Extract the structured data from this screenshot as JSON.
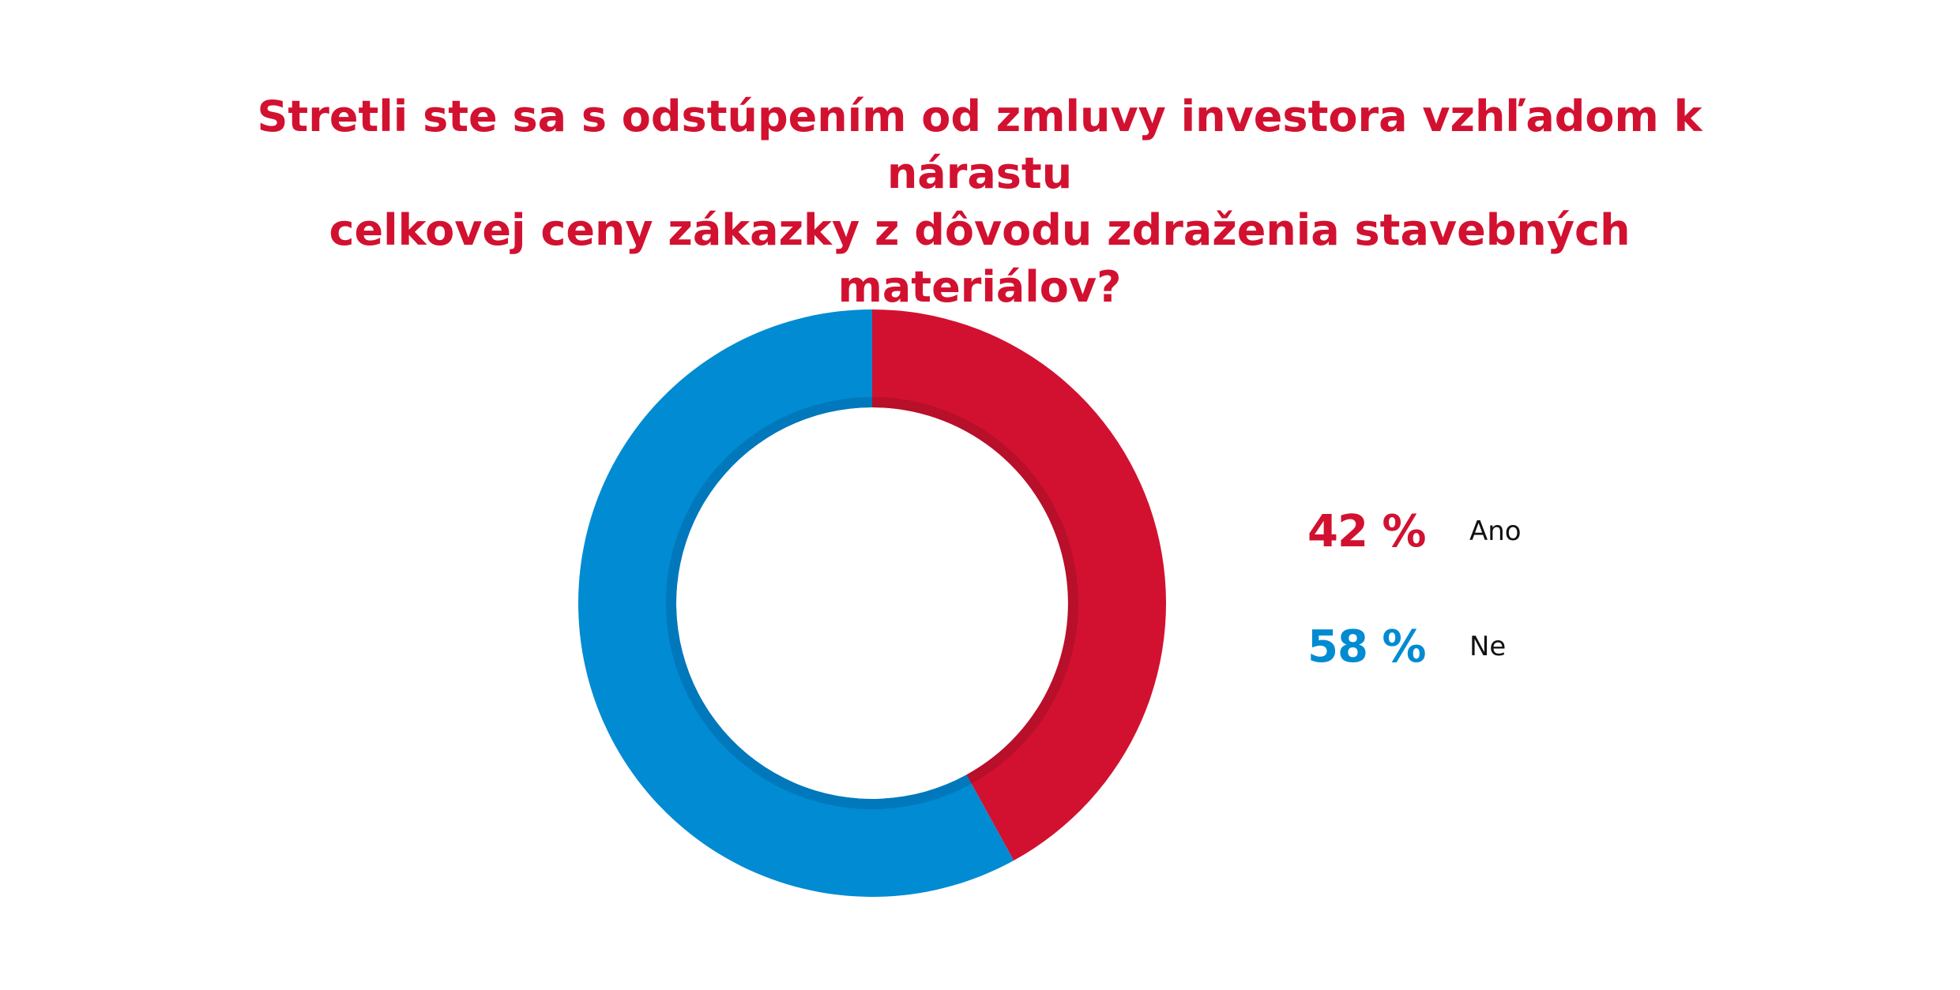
{
  "colors": {
    "title": "#d21130",
    "ano": "#d21130",
    "ne": "#008bd2",
    "ano_inner": "#b80f2a",
    "ne_inner": "#0078bb"
  },
  "chart_data": {
    "type": "pie",
    "title": "Stretli ste sa s odstúpením od zmluvy investora vzhľadom k nárastu celkovej ceny zákazky z dôvodu zdraženia stavebných materiálov?",
    "title_lines": [
      "Stretli ste sa s odstúpením od zmluvy investora vzhľadom k nárastu",
      "celkovej ceny zákazky z dôvodu zdraženia stavebných materiálov?"
    ],
    "categories": [
      "Ano",
      "Ne"
    ],
    "values": [
      42,
      58
    ],
    "labels": [
      "42 %",
      "58 %"
    ],
    "legend": "right",
    "donut": true
  }
}
